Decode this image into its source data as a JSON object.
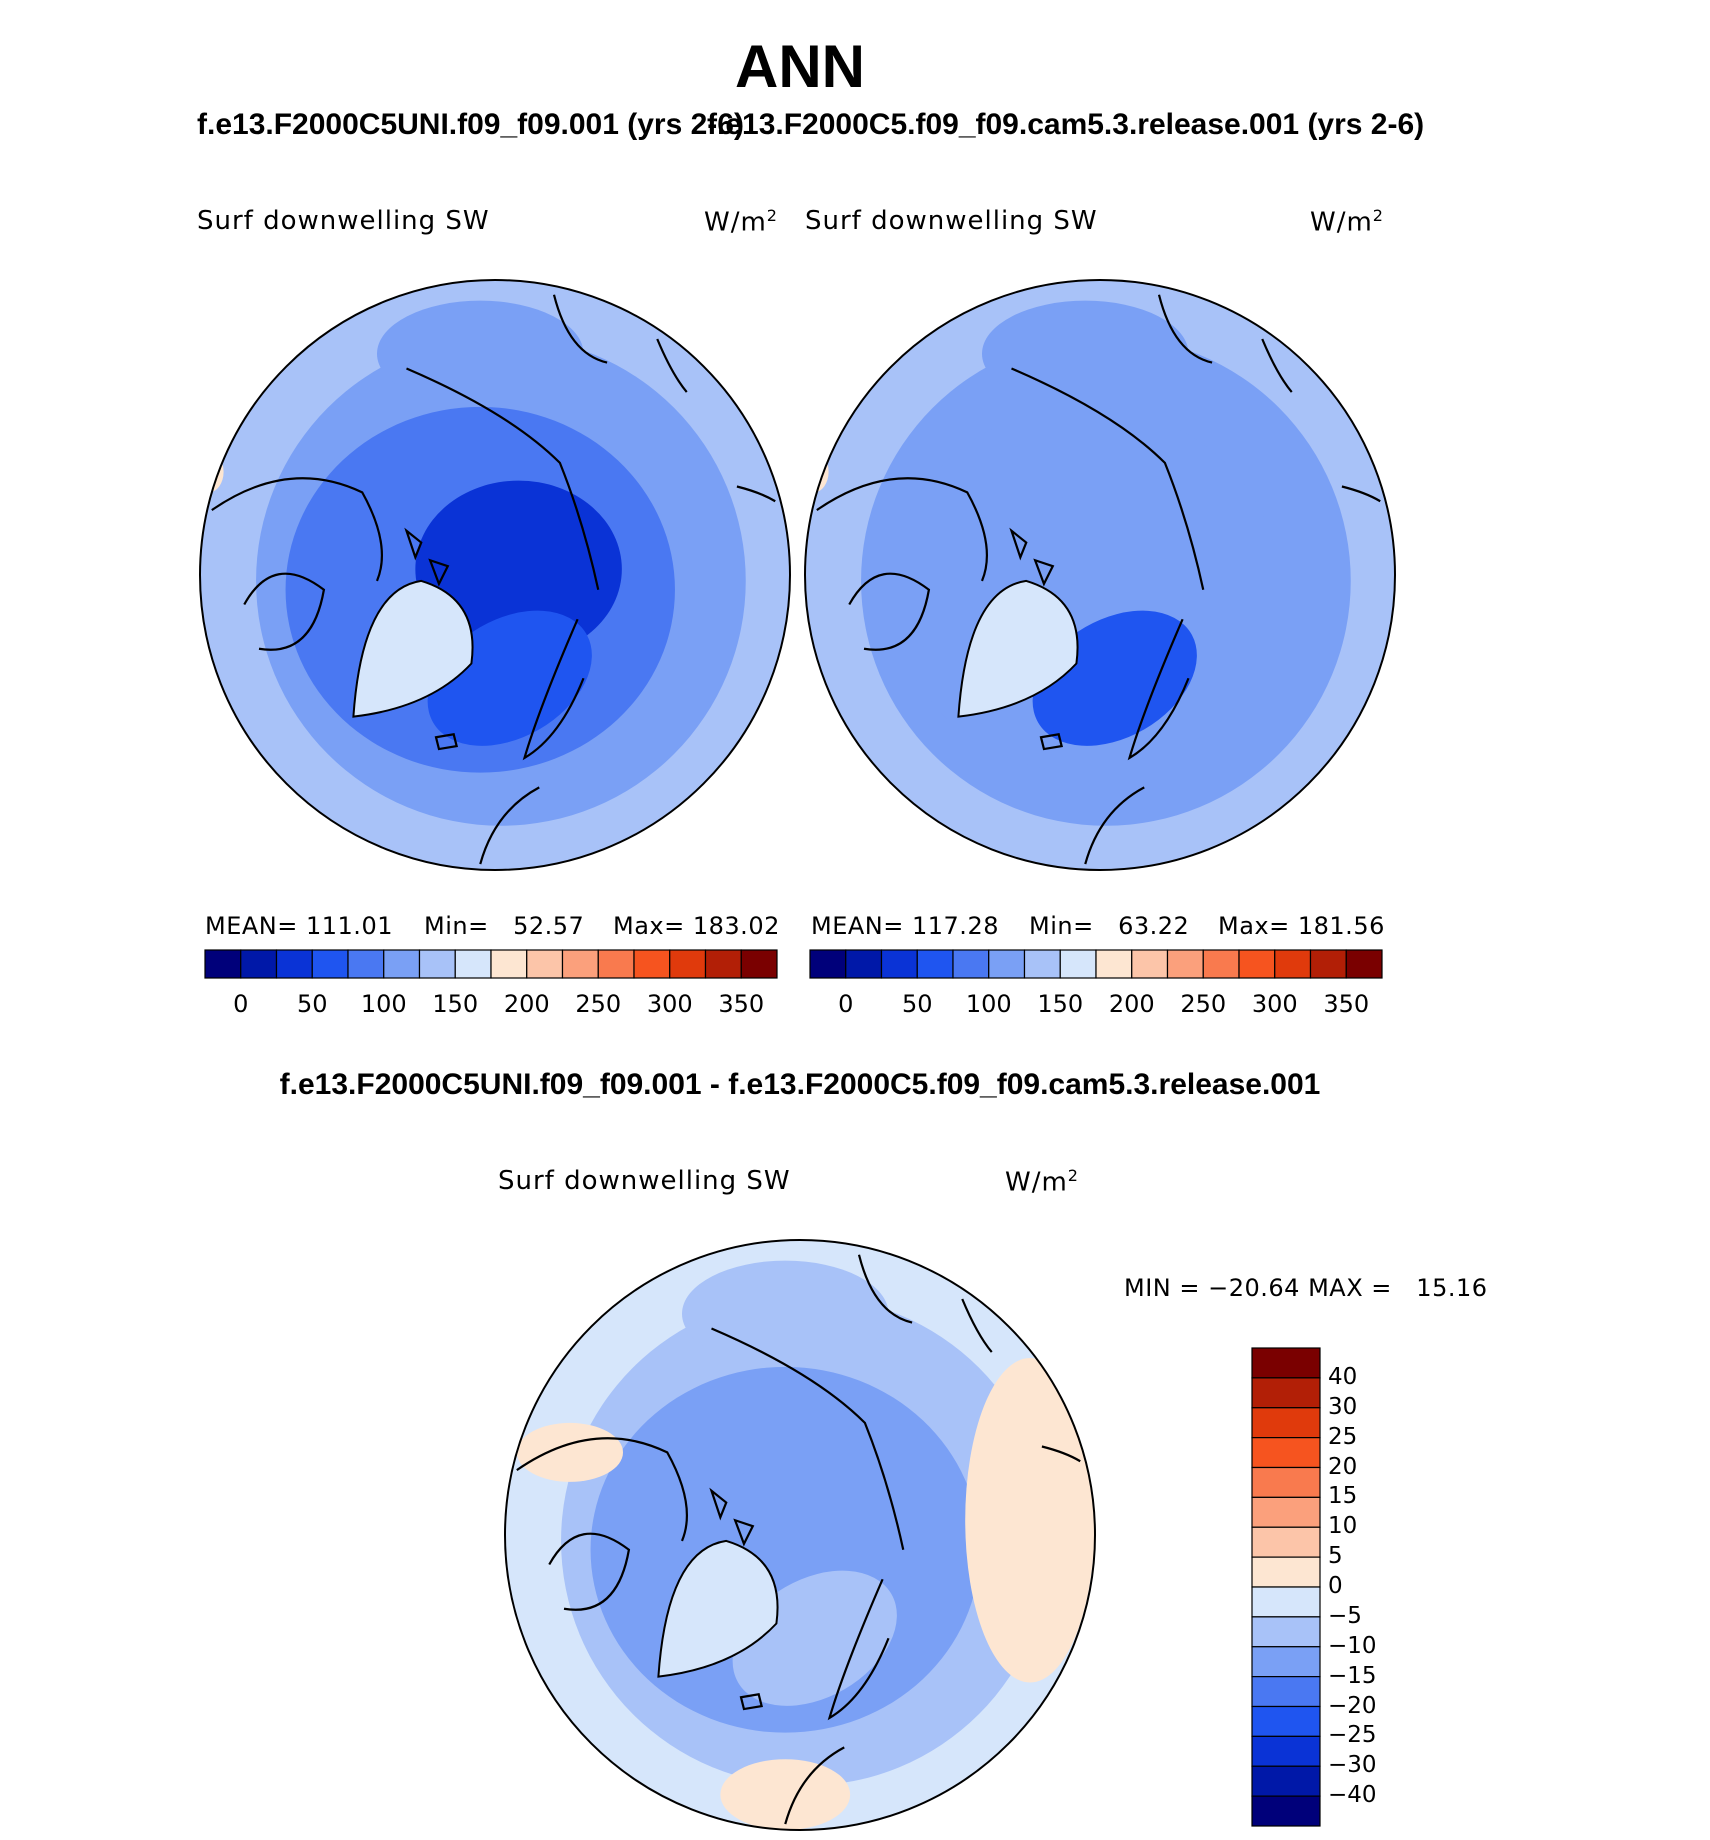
{
  "header": {
    "title": "ANN",
    "left_case": "f.e13.F2000C5UNI.f09_f09.001 (yrs 2-6)",
    "right_case": "f.e13.F2000C5.f09_f09.cam5.3.release.001 (yrs 2-6)",
    "diff_title": "f.e13.F2000C5UNI.f09_f09.001 - f.e13.F2000C5.f09_f09.cam5.3.release.001"
  },
  "colors": {
    "abs_scale": [
      "#00007a",
      "#0018a8",
      "#0a33d6",
      "#1f55f0",
      "#4a78f2",
      "#7aa0f5",
      "#a8c2f8",
      "#d6e6fb",
      "#fde6d2",
      "#fcc5a9",
      "#fba07c",
      "#f97a4e",
      "#f6541f",
      "#e03a0c",
      "#b21f06",
      "#7a0000"
    ],
    "diff_scale": [
      "#00007a",
      "#0018a8",
      "#0a33d6",
      "#1f55f0",
      "#4a78f2",
      "#7aa0f5",
      "#a8c2f8",
      "#d6e6fb",
      "#fde6d2",
      "#fcc5a9",
      "#fba07c",
      "#f97a4e",
      "#f6541f",
      "#e03a0c",
      "#b21f06",
      "#7a0000"
    ]
  },
  "chart_data": [
    {
      "type": "heatmap",
      "name": "left-panel",
      "variable": "Surf downwelling SW",
      "units_base": "W/m",
      "units_exp": "2",
      "stats": {
        "mean_label": "MEAN=",
        "mean": "111.01",
        "min_label": "Min=",
        "min": "52.57",
        "max_label": "Max=",
        "max": "183.02"
      },
      "colorbar_ticks": [
        "0",
        "50",
        "100",
        "150",
        "200",
        "250",
        "300",
        "350"
      ],
      "field": {
        "pole": 2,
        "ring": 4,
        "ring2": 5,
        "greenland": 7,
        "atlantic": 3,
        "pacific": 5,
        "edge": 6,
        "hotspot": 8
      }
    },
    {
      "type": "heatmap",
      "name": "right-panel",
      "variable": "Surf downwelling SW",
      "units_base": "W/m",
      "units_exp": "2",
      "stats": {
        "mean_label": "MEAN=",
        "mean": "117.28",
        "min_label": "Min=",
        "min": "63.22",
        "max_label": "Max=",
        "max": "181.56"
      },
      "colorbar_ticks": [
        "0",
        "50",
        "100",
        "150",
        "200",
        "250",
        "300",
        "350"
      ],
      "field": {
        "pole": 5,
        "ring": 5,
        "ring2": 5,
        "greenland": 7,
        "atlantic": 3,
        "pacific": 5,
        "edge": 6,
        "hotspot": 8
      }
    },
    {
      "type": "heatmap",
      "name": "difference-panel",
      "variable": "Surf downwelling SW",
      "units_base": "W/m",
      "units_exp": "2",
      "stats": {
        "min_label": "MIN =",
        "min": "−20.64",
        "max_label": "MAX =",
        "max": "15.16"
      },
      "colorbar_levels": [
        "40",
        "30",
        "25",
        "20",
        "15",
        "10",
        "5",
        "0",
        "−5",
        "−10",
        "−15",
        "−20",
        "−25",
        "−30",
        "−40"
      ],
      "field": {
        "pole": 5,
        "ring": 5,
        "ring2": 6,
        "greenland": 7,
        "atlantic": 6,
        "pacific": 6,
        "edge": 7,
        "hotspot": 8
      }
    }
  ]
}
